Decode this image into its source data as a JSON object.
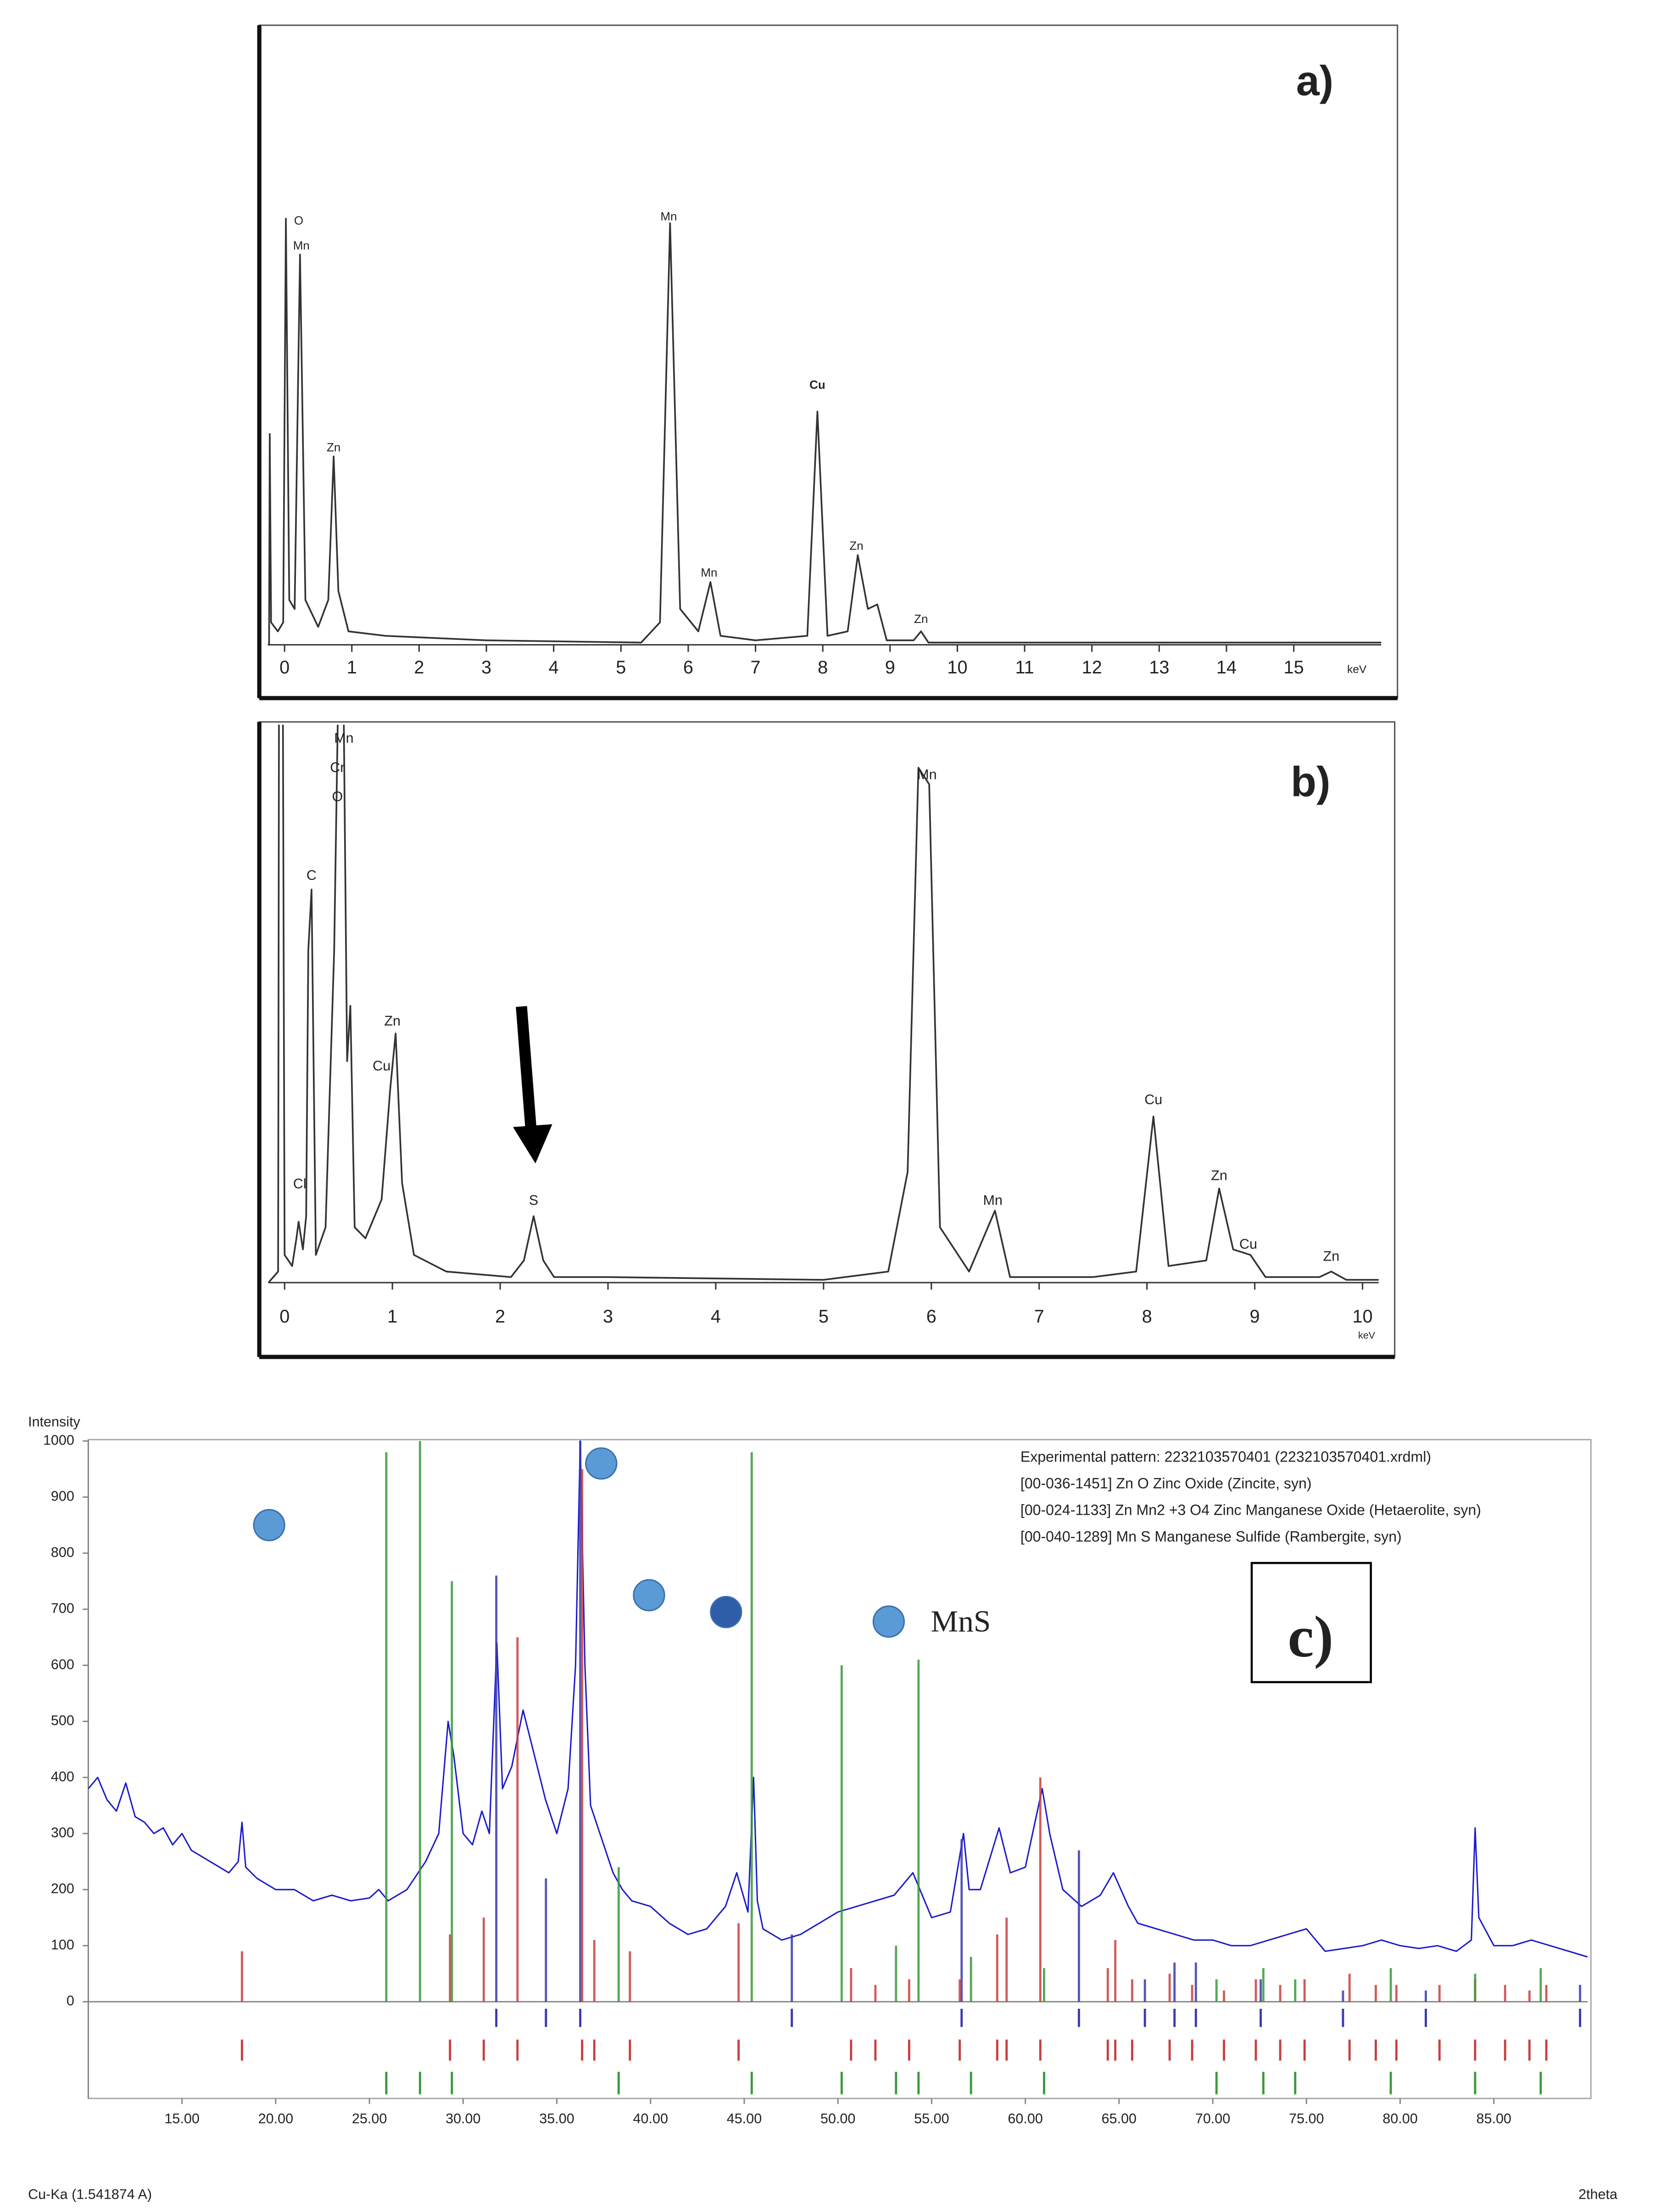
{
  "chart_data": [
    {
      "type": "line",
      "panel_label": "a)",
      "x_label": "keV",
      "xlim": [
        -0.25,
        16.3
      ],
      "xticks": [
        0,
        1,
        2,
        3,
        4,
        5,
        6,
        7,
        8,
        9,
        10,
        11,
        12,
        13,
        14,
        15
      ],
      "ylim": [
        0,
        100
      ],
      "series": [
        {
          "color": "#333333",
          "x": [
            -0.23,
            -0.22,
            -0.2,
            -0.1,
            -0.02,
            0.02,
            0.07,
            0.15,
            0.23,
            0.31,
            0.5,
            0.65,
            0.73,
            0.8,
            0.95,
            1.5,
            3,
            5.3,
            5.58,
            5.73,
            5.88,
            6.15,
            6.33,
            6.48,
            7,
            7.77,
            7.92,
            8.07,
            8.37,
            8.52,
            8.67,
            8.81,
            8.95,
            9.35,
            9.46,
            9.57,
            12,
            16.3
          ],
          "values": [
            0,
            47,
            5,
            3,
            5,
            95,
            10,
            8,
            87,
            10,
            4,
            10,
            42,
            12,
            3,
            2,
            1,
            0.5,
            5,
            94,
            8,
            3,
            14,
            2,
            1,
            2,
            52,
            2,
            3,
            20,
            8,
            9,
            1,
            1,
            3,
            0.5,
            0.5,
            0.5
          ]
        }
      ],
      "annotations": [
        {
          "text": "O",
          "x": 0.21,
          "y": 94.4
        },
        {
          "text": "Mn",
          "x": 0.25,
          "y": 88.8
        },
        {
          "text": "Zn",
          "x": 0.73,
          "y": 43.8
        },
        {
          "text": "Mn",
          "x": 5.71,
          "y": 95.3
        },
        {
          "text": "Mn",
          "x": 6.31,
          "y": 15.9
        },
        {
          "text": "Cu",
          "x": 7.92,
          "y": 57.8
        },
        {
          "text": "Zn",
          "x": 8.5,
          "y": 21.9
        },
        {
          "text": "Zn",
          "x": 9.46,
          "y": 5.6
        }
      ]
    },
    {
      "type": "line",
      "panel_label": "b)",
      "x_label": "keV",
      "xlim": [
        -0.15,
        10.15
      ],
      "xticks": [
        0,
        1,
        2,
        3,
        4,
        5,
        6,
        7,
        8,
        9,
        10
      ],
      "ylim": [
        0,
        100
      ],
      "series": [
        {
          "color": "#333333",
          "x": [
            -0.15,
            -0.06,
            -0.05,
            -0.02,
            0,
            0.07,
            0.11,
            0.13,
            0.17,
            0.2,
            0.22,
            0.25,
            0.29,
            0.38,
            0.46,
            0.5,
            0.54,
            0.58,
            0.61,
            0.65,
            0.75,
            0.9,
            0.98,
            1.03,
            1.09,
            1.2,
            1.5,
            2.1,
            2.22,
            2.31,
            2.4,
            2.5,
            3,
            5,
            5.6,
            5.78,
            5.88,
            5.98,
            6.08,
            6.35,
            6.59,
            6.73,
            7.5,
            7.9,
            8.06,
            8.2,
            8.55,
            8.67,
            8.8,
            8.96,
            9.1,
            9.6,
            9.71,
            9.85,
            10.15
          ],
          "values": [
            0,
            2,
            130,
            130,
            5,
            3,
            8,
            11,
            6,
            12,
            60,
            71,
            5,
            10,
            60,
            110,
            120,
            40,
            50,
            10,
            8,
            15,
            35,
            45,
            18,
            5,
            2,
            1,
            4,
            12,
            4,
            1,
            1,
            0.5,
            2,
            20,
            93,
            90,
            10,
            2,
            13,
            1,
            1,
            2,
            30,
            3,
            4,
            17,
            6,
            5,
            1,
            1,
            2,
            0.5,
            0.5
          ]
        }
      ],
      "annotations": [
        {
          "text": "Mn",
          "x": 0.55,
          "y": 98.2
        },
        {
          "text": "Cr",
          "x": 0.49,
          "y": 92.9
        },
        {
          "text": "O",
          "x": 0.49,
          "y": 87.6
        },
        {
          "text": "C",
          "x": 0.25,
          "y": 73.4
        },
        {
          "text": "Cl",
          "x": 0.14,
          "y": 17.7
        },
        {
          "text": "Zn",
          "x": 1.0,
          "y": 47.1
        },
        {
          "text": "Cu",
          "x": 0.9,
          "y": 39
        },
        {
          "text": "S",
          "x": 2.31,
          "y": 14.7
        },
        {
          "text": "Mn",
          "x": 5.96,
          "y": 91.6
        },
        {
          "text": "Mn",
          "x": 6.57,
          "y": 14.7
        },
        {
          "text": "Cu",
          "x": 8.06,
          "y": 32.9
        },
        {
          "text": "Zn",
          "x": 8.67,
          "y": 19.2
        },
        {
          "text": "Cu",
          "x": 8.94,
          "y": 6.8
        },
        {
          "text": "Zn",
          "x": 9.71,
          "y": 4.6
        }
      ]
    },
    {
      "type": "xrd",
      "panel_label": "c)",
      "y_label": "Intensity",
      "x_label": "2theta",
      "source_label": "Cu-Ka (1.541874 A)",
      "xlim": [
        10,
        90
      ],
      "ylim": [
        0,
        1000
      ],
      "yticks": [
        0,
        100,
        200,
        300,
        400,
        500,
        600,
        700,
        800,
        900,
        1000
      ],
      "xticks": [
        {
          "value": 15,
          "label": "15.00"
        },
        {
          "value": 20,
          "label": "20.00"
        },
        {
          "value": 25,
          "label": "25.00"
        },
        {
          "value": 30,
          "label": "30.00"
        },
        {
          "value": 35,
          "label": "35.00"
        },
        {
          "value": 40,
          "label": "40.00"
        },
        {
          "value": 45,
          "label": "45.00"
        },
        {
          "value": 50,
          "label": "50.00"
        },
        {
          "value": 55,
          "label": "55.00"
        },
        {
          "value": 60,
          "label": "60.00"
        },
        {
          "value": 65,
          "label": "65.00"
        },
        {
          "value": 70,
          "label": "70.00"
        },
        {
          "value": 75,
          "label": "75.00"
        },
        {
          "value": 80,
          "label": "80.00"
        },
        {
          "value": 85,
          "label": "85.00"
        }
      ],
      "series": [
        {
          "name": "Experimental pattern: 2232103570401 (2232103570401.xrdml)",
          "color": "#1a1acc",
          "style": "line",
          "x": [
            10,
            10.5,
            11,
            11.5,
            12,
            12.5,
            13,
            13.5,
            14,
            14.5,
            15,
            15.5,
            16,
            16.5,
            17,
            17.5,
            18,
            18.2,
            18.4,
            19,
            19.5,
            20,
            21,
            22,
            23,
            24,
            25,
            25.5,
            26,
            27,
            28,
            28.7,
            29.2,
            29.5,
            30,
            30.5,
            31,
            31.4,
            31.8,
            32.1,
            32.6,
            33.2,
            33.8,
            34.4,
            35,
            35.6,
            36,
            36.25,
            36.5,
            36.8,
            37.3,
            38,
            38.5,
            39,
            40,
            41,
            42,
            43,
            44,
            44.6,
            45.2,
            45.5,
            45.7,
            46,
            47,
            48,
            49,
            50,
            51,
            52,
            53,
            54,
            54.5,
            55,
            56,
            56.7,
            57,
            57.6,
            58.6,
            59.2,
            60,
            60.9,
            61.3,
            62,
            63,
            64,
            64.7,
            65.5,
            66,
            67,
            68,
            69,
            70,
            71,
            72,
            73,
            74,
            75,
            75.5,
            76,
            77,
            78,
            79,
            80,
            81,
            82,
            83,
            83.8,
            84,
            84.2,
            85,
            86,
            87,
            88,
            89,
            90
          ],
          "values": [
            380,
            400,
            360,
            340,
            390,
            330,
            320,
            300,
            310,
            280,
            300,
            270,
            260,
            250,
            240,
            230,
            250,
            320,
            240,
            220,
            210,
            200,
            200,
            180,
            190,
            180,
            185,
            200,
            180,
            200,
            250,
            300,
            500,
            440,
            300,
            280,
            340,
            300,
            640,
            380,
            420,
            520,
            440,
            360,
            300,
            380,
            600,
            1000,
            600,
            350,
            300,
            230,
            200,
            180,
            170,
            140,
            120,
            130,
            170,
            230,
            160,
            400,
            180,
            130,
            110,
            120,
            140,
            160,
            170,
            180,
            190,
            230,
            190,
            150,
            160,
            300,
            200,
            200,
            310,
            230,
            240,
            380,
            300,
            200,
            170,
            190,
            230,
            170,
            140,
            130,
            120,
            110,
            110,
            100,
            100,
            110,
            120,
            130,
            110,
            90,
            95,
            100,
            110,
            100,
            95,
            100,
            90,
            110,
            310,
            150,
            100,
            100,
            110,
            100,
            90,
            80
          ]
        },
        {
          "name": "[00-036-1451] Zn O Zinc Oxide (Zincite, syn)",
          "color": "#3a3ab0",
          "style": "stick",
          "x": [
            31.77,
            34.42,
            36.25,
            47.54,
            56.6,
            62.86,
            66.38,
            67.96,
            69.1,
            72.56,
            76.95,
            81.37,
            89.6
          ],
          "values": [
            760,
            220,
            1000,
            120,
            290,
            270,
            40,
            70,
            70,
            40,
            20,
            20,
            30
          ]
        },
        {
          "name": "[00-024-1133] Zn Mn2 +3 O4 Zinc Manganese Oxide (Hetaerolite, syn)",
          "color": "#c84040",
          "style": "stick",
          "x": [
            18.2,
            29.3,
            31.1,
            32.9,
            36.35,
            37.0,
            38.9,
            44.7,
            50.7,
            52.0,
            53.8,
            56.5,
            58.5,
            59.0,
            60.8,
            64.4,
            64.8,
            65.7,
            67.7,
            68.9,
            70.6,
            72.3,
            73.6,
            74.9,
            77.3,
            78.7,
            79.8,
            82.1,
            84.0,
            85.6,
            86.9,
            87.8
          ],
          "values": [
            90,
            120,
            150,
            650,
            950,
            110,
            90,
            140,
            60,
            30,
            40,
            40,
            120,
            150,
            400,
            60,
            110,
            40,
            50,
            30,
            20,
            40,
            30,
            40,
            50,
            30,
            30,
            30,
            40,
            30,
            20,
            30
          ]
        },
        {
          "name": "[00-040-1289] Mn S Manganese Sulfide (Rambergite, syn)",
          "color": "#3a9a3a",
          "style": "stick",
          "x": [
            25.9,
            27.7,
            29.4,
            38.3,
            45.4,
            50.2,
            53.1,
            54.3,
            57.1,
            61.0,
            70.2,
            72.7,
            74.4,
            79.5,
            84.0,
            87.5
          ],
          "values": [
            980,
            1000,
            750,
            240,
            980,
            600,
            100,
            610,
            80,
            60,
            40,
            60,
            40,
            60,
            50,
            60
          ]
        }
      ],
      "markers": [
        {
          "x": 19.65,
          "y": 850,
          "color": "#5b9bd5"
        },
        {
          "x": 37.37,
          "y": 960,
          "color": "#5b9bd5"
        },
        {
          "x": 39.92,
          "y": 725,
          "color": "#5b9bd5"
        },
        {
          "x": 44.03,
          "y": 695,
          "color": "#2f5ea8"
        },
        {
          "x": 52.71,
          "y": 678,
          "color": "#5b9bd5"
        }
      ],
      "marker_label": "MnS"
    }
  ]
}
